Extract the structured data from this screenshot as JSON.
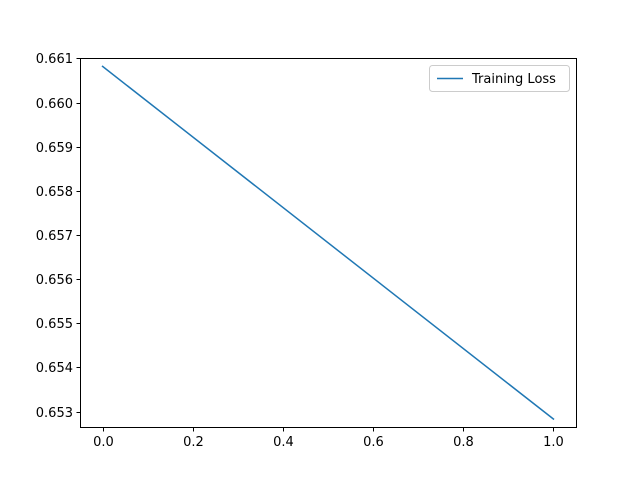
{
  "chart_data": {
    "type": "line",
    "title": "",
    "xlabel": "",
    "ylabel": "",
    "xlim": [
      -0.05,
      1.05
    ],
    "ylim": [
      0.65265,
      0.66101
    ],
    "x_ticks": [
      {
        "value": 0.0,
        "label": "0.0"
      },
      {
        "value": 0.2,
        "label": "0.2"
      },
      {
        "value": 0.4,
        "label": "0.4"
      },
      {
        "value": 0.6,
        "label": "0.6"
      },
      {
        "value": 0.8,
        "label": "0.8"
      },
      {
        "value": 1.0,
        "label": "1.0"
      }
    ],
    "y_ticks": [
      {
        "value": 0.653,
        "label": "0.653"
      },
      {
        "value": 0.654,
        "label": "0.654"
      },
      {
        "value": 0.655,
        "label": "0.655"
      },
      {
        "value": 0.656,
        "label": "0.656"
      },
      {
        "value": 0.657,
        "label": "0.657"
      },
      {
        "value": 0.658,
        "label": "0.658"
      },
      {
        "value": 0.659,
        "label": "0.659"
      },
      {
        "value": 0.66,
        "label": "0.660"
      },
      {
        "value": 0.661,
        "label": "0.661"
      }
    ],
    "grid": false,
    "legend_position": "top-right",
    "series": [
      {
        "name": "Training Loss",
        "color": "#1f77b4",
        "x": [
          0,
          1
        ],
        "y": [
          0.66082,
          0.65283
        ]
      }
    ]
  }
}
